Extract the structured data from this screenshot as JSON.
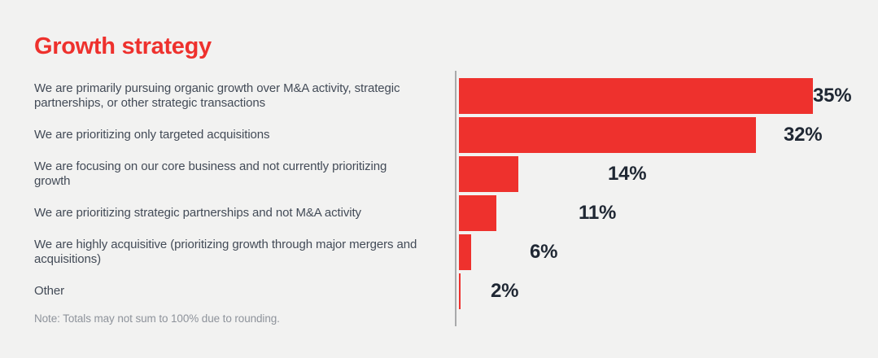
{
  "title": "Growth strategy",
  "note": "Note: Totals may not sum to 100% due to rounding.",
  "colors": {
    "background": "#f2f2f1",
    "bar": "#ee312d",
    "title_text": "#ee312d",
    "value_text": "#1f2733",
    "label_text": "#434b57",
    "note_text": "#8e939b",
    "axis_line": "#a9aaab"
  },
  "chart_data": {
    "type": "bar",
    "orientation": "horizontal",
    "title": "Growth strategy",
    "categories": [
      "We are primarily pursuing organic growth over M&A activity, strategic partnerships, or other strategic transactions",
      "We are prioritizing only targeted acquisitions",
      "We are focusing on our core business and not currently prioritizing growth",
      "We are prioritizing strategic partnerships and not M&A activity",
      "We are highly acquisitive (prioritizing growth through major mergers and acquisitions)",
      "Other"
    ],
    "values": [
      35,
      32,
      14,
      11,
      6,
      2
    ],
    "value_labels": [
      "35%",
      "32%",
      "14%",
      "11%",
      "6%",
      "2%"
    ],
    "xlim": [
      0,
      35
    ],
    "grid": false,
    "legend": false,
    "bar_color": "#ee312d",
    "note": "Note: Totals may not sum to 100% due to rounding."
  }
}
